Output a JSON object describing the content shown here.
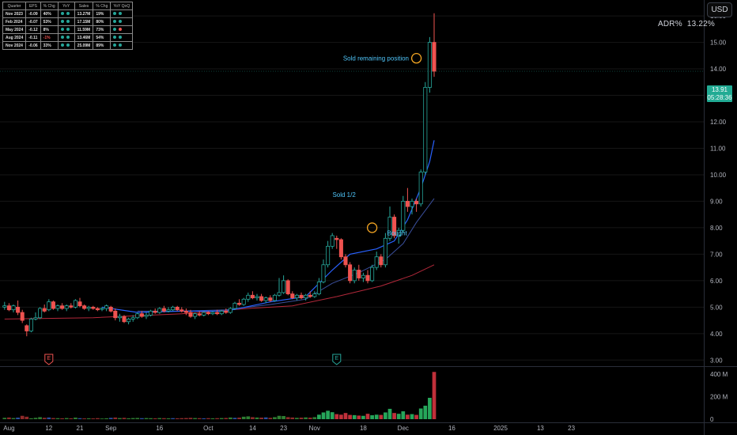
{
  "header": {
    "currency_button": "USD",
    "adr_label": "ADR%",
    "adr_value": "13.22%"
  },
  "price_badge": {
    "price": "13.91",
    "countdown": "05:28:36",
    "value": 13.91,
    "color": "#22ab94"
  },
  "earnings_table": {
    "headers": [
      "Quarter",
      "EPS",
      "% Chg",
      "YoY",
      "Sales",
      "% Chg",
      "YoY QoQ"
    ],
    "rows": [
      {
        "quarter": "Nov 2023",
        "eps": "-0.09",
        "eps_chg": "40%",
        "d1": "green",
        "d2": "green",
        "sales": "13.27M",
        "sales_chg": "19%",
        "d3": "green",
        "d4": "green"
      },
      {
        "quarter": "Feb 2024",
        "eps": "-0.07",
        "eps_chg": "53%",
        "d1": "green",
        "d2": "green",
        "sales": "17.15M",
        "sales_chg": "80%",
        "d3": "green",
        "d4": "green"
      },
      {
        "quarter": "May 2024",
        "eps": "-0.12",
        "eps_chg": "8%",
        "d1": "green",
        "d2": "green",
        "sales": "11.59M",
        "sales_chg": "73%",
        "d3": "green",
        "d4": "red"
      },
      {
        "quarter": "Aug 2024",
        "eps": "-0.11",
        "eps_chg": "-1%",
        "d1": "green",
        "d2": "green",
        "sales": "13.46M",
        "sales_chg": "54%",
        "d3": "green",
        "d4": "green"
      },
      {
        "quarter": "Nov 2024",
        "eps": "-0.06",
        "eps_chg": "33%",
        "d1": "green",
        "d2": "green",
        "sales": "25.09M",
        "sales_chg": "89%",
        "d3": "green",
        "d4": "green"
      }
    ]
  },
  "annotations": [
    {
      "text": "Sold remaining position",
      "x": 92,
      "y": 14.4,
      "align": "end",
      "circle": true,
      "circle_y": 14.4
    },
    {
      "text": "Sold 1/2",
      "x": 80,
      "y": 9.25,
      "align": "end",
      "circle": false
    },
    {
      "text": "Bought",
      "x": 86,
      "y": 7.8,
      "align": "start",
      "circle": true,
      "circle_y": 8.0
    }
  ],
  "earnings_markers": [
    {
      "x": 10,
      "label": "E",
      "color": "#ef5350"
    },
    {
      "x": 75,
      "label": "E",
      "color": "#26a69a"
    }
  ],
  "colors": {
    "up": "#26a69a",
    "down": "#ef5350",
    "ema_fast": "#2962ff",
    "ema_mid": "#3a4f9c",
    "ema_slow": "#b2283a",
    "grid": "#161616",
    "axis_text": "#b2b5be"
  },
  "chart_data": {
    "type": "candlestick",
    "price_axis": {
      "ticks": [
        3.0,
        4.0,
        5.0,
        6.0,
        7.0,
        8.0,
        9.0,
        10.0,
        11.0,
        12.0,
        13.0,
        14.0,
        15.0,
        16.0
      ],
      "range": [
        2.8,
        16.6
      ]
    },
    "volume_axis": {
      "ticks": [
        "400 M",
        "200 M",
        "0"
      ],
      "tick_values": [
        400,
        200,
        0
      ],
      "range": [
        0,
        450
      ],
      "unit": "M"
    },
    "x_axis": {
      "labels": [
        {
          "text": "Aug",
          "bar": 1
        },
        {
          "text": "12",
          "bar": 10
        },
        {
          "text": "21",
          "bar": 17
        },
        {
          "text": "Sep",
          "bar": 24
        },
        {
          "text": "16",
          "bar": 35
        },
        {
          "text": "Oct",
          "bar": 46
        },
        {
          "text": "14",
          "bar": 56
        },
        {
          "text": "23",
          "bar": 63
        },
        {
          "text": "Nov",
          "bar": 70
        },
        {
          "text": "18",
          "bar": 81
        },
        {
          "text": "Dec",
          "bar": 90
        },
        {
          "text": "16",
          "bar": 101
        },
        {
          "text": "2025",
          "bar": 112
        },
        {
          "text": "13",
          "bar": 121
        },
        {
          "text": "23",
          "bar": 128
        }
      ]
    },
    "candles": [
      [
        5.0,
        5.2,
        4.9,
        5.05
      ],
      [
        5.05,
        5.15,
        4.85,
        4.9
      ],
      [
        4.9,
        5.1,
        4.8,
        5.05
      ],
      [
        5.0,
        5.25,
        4.7,
        4.8
      ],
      [
        4.8,
        4.9,
        4.4,
        4.5
      ],
      [
        4.3,
        4.35,
        3.9,
        4.1
      ],
      [
        4.1,
        4.6,
        4.05,
        4.55
      ],
      [
        4.55,
        4.8,
        4.5,
        4.6
      ],
      [
        4.6,
        5.0,
        4.55,
        4.95
      ],
      [
        4.95,
        5.1,
        4.8,
        4.85
      ],
      [
        4.9,
        5.3,
        4.85,
        5.2
      ],
      [
        5.2,
        5.25,
        4.9,
        4.95
      ],
      [
        4.95,
        5.1,
        4.85,
        5.05
      ],
      [
        5.05,
        5.15,
        4.9,
        4.95
      ],
      [
        4.95,
        5.1,
        4.85,
        5.05
      ],
      [
        5.05,
        5.15,
        4.95,
        5.0
      ],
      [
        5.0,
        5.3,
        4.95,
        5.25
      ],
      [
        5.2,
        5.35,
        5.0,
        5.05
      ],
      [
        5.05,
        5.1,
        4.9,
        4.95
      ],
      [
        4.95,
        5.05,
        4.85,
        5.0
      ],
      [
        5.0,
        5.05,
        4.9,
        4.95
      ],
      [
        4.95,
        5.0,
        4.85,
        4.9
      ],
      [
        4.95,
        5.0,
        4.85,
        4.95
      ],
      [
        4.95,
        5.1,
        4.85,
        5.05
      ],
      [
        5.0,
        5.05,
        4.8,
        4.85
      ],
      [
        4.85,
        4.95,
        4.5,
        4.6
      ],
      [
        4.6,
        4.75,
        4.45,
        4.65
      ],
      [
        4.65,
        4.7,
        4.4,
        4.45
      ],
      [
        4.45,
        4.6,
        4.35,
        4.55
      ],
      [
        4.55,
        4.7,
        4.45,
        4.6
      ],
      [
        4.6,
        4.8,
        4.55,
        4.75
      ],
      [
        4.75,
        4.85,
        4.6,
        4.65
      ],
      [
        4.65,
        4.8,
        4.55,
        4.7
      ],
      [
        4.7,
        4.9,
        4.65,
        4.85
      ],
      [
        4.85,
        4.95,
        4.75,
        4.8
      ],
      [
        4.8,
        5.0,
        4.75,
        4.95
      ],
      [
        4.95,
        5.05,
        4.8,
        4.85
      ],
      [
        4.85,
        5.0,
        4.8,
        4.9
      ],
      [
        4.9,
        5.05,
        4.85,
        5.0
      ],
      [
        5.0,
        5.05,
        4.85,
        4.9
      ],
      [
        4.9,
        5.0,
        4.8,
        4.85
      ],
      [
        4.85,
        4.95,
        4.7,
        4.8
      ],
      [
        4.8,
        4.9,
        4.6,
        4.65
      ],
      [
        4.65,
        4.8,
        4.55,
        4.75
      ],
      [
        4.75,
        4.85,
        4.65,
        4.7
      ],
      [
        4.7,
        4.85,
        4.65,
        4.8
      ],
      [
        4.8,
        4.85,
        4.7,
        4.75
      ],
      [
        4.75,
        4.85,
        4.7,
        4.8
      ],
      [
        4.8,
        4.9,
        4.7,
        4.75
      ],
      [
        4.75,
        4.9,
        4.7,
        4.85
      ],
      [
        4.85,
        4.95,
        4.75,
        4.8
      ],
      [
        4.8,
        5.0,
        4.75,
        4.95
      ],
      [
        4.95,
        5.2,
        4.9,
        5.15
      ],
      [
        5.15,
        5.3,
        5.05,
        5.1
      ],
      [
        5.1,
        5.35,
        5.05,
        5.3
      ],
      [
        5.3,
        5.55,
        5.2,
        5.45
      ],
      [
        5.45,
        5.6,
        5.3,
        5.35
      ],
      [
        5.35,
        5.5,
        5.25,
        5.4
      ],
      [
        5.4,
        5.5,
        5.2,
        5.25
      ],
      [
        5.25,
        5.4,
        5.15,
        5.35
      ],
      [
        5.35,
        5.45,
        5.2,
        5.25
      ],
      [
        5.25,
        5.5,
        5.2,
        5.45
      ],
      [
        5.45,
        6.1,
        5.4,
        5.55
      ],
      [
        5.55,
        6.2,
        5.5,
        6.0
      ],
      [
        6.0,
        6.05,
        5.45,
        5.5
      ],
      [
        5.5,
        5.6,
        5.3,
        5.35
      ],
      [
        5.35,
        5.5,
        5.25,
        5.45
      ],
      [
        5.45,
        5.55,
        5.3,
        5.35
      ],
      [
        5.35,
        5.5,
        5.25,
        5.45
      ],
      [
        5.45,
        5.6,
        5.35,
        5.4
      ],
      [
        5.4,
        5.6,
        5.35,
        5.5
      ],
      [
        5.5,
        6.1,
        5.45,
        5.95
      ],
      [
        5.95,
        6.8,
        5.9,
        6.6
      ],
      [
        6.6,
        7.5,
        6.5,
        7.3
      ],
      [
        7.3,
        7.8,
        7.2,
        7.7
      ],
      [
        7.6,
        7.7,
        7.2,
        7.55
      ],
      [
        7.55,
        7.6,
        6.8,
        6.9
      ],
      [
        6.9,
        7.0,
        6.5,
        6.6
      ],
      [
        6.6,
        6.7,
        5.9,
        6.0
      ],
      [
        6.0,
        6.5,
        5.9,
        6.4
      ],
      [
        6.4,
        6.6,
        6.0,
        6.1
      ],
      [
        6.1,
        6.3,
        5.95,
        6.2
      ],
      [
        6.2,
        6.4,
        5.9,
        6.0
      ],
      [
        6.0,
        6.6,
        5.95,
        6.5
      ],
      [
        6.5,
        7.1,
        6.4,
        6.9
      ],
      [
        6.9,
        7.0,
        6.5,
        6.6
      ],
      [
        6.6,
        7.8,
        6.5,
        7.6
      ],
      [
        7.6,
        8.8,
        7.5,
        8.4
      ],
      [
        8.4,
        8.5,
        7.6,
        7.7
      ],
      [
        7.7,
        8.0,
        7.4,
        7.9
      ],
      [
        7.9,
        9.2,
        7.8,
        9.0
      ],
      [
        9.0,
        9.5,
        8.6,
        8.8
      ],
      [
        8.8,
        9.1,
        8.5,
        9.0
      ],
      [
        9.0,
        9.1,
        8.6,
        8.9
      ],
      [
        8.9,
        10.2,
        8.8,
        10.1
      ],
      [
        10.1,
        13.5,
        10.0,
        13.3
      ],
      [
        13.3,
        15.2,
        13.1,
        15.0
      ],
      [
        15.0,
        16.1,
        13.7,
        13.91
      ]
    ],
    "ema_fast": [
      [
        22,
        5.0
      ],
      [
        30,
        4.8
      ],
      [
        40,
        4.85
      ],
      [
        50,
        4.85
      ],
      [
        60,
        5.2
      ],
      [
        68,
        5.4
      ],
      [
        74,
        6.4
      ],
      [
        78,
        7.0
      ],
      [
        84,
        7.2
      ],
      [
        88,
        7.5
      ],
      [
        91,
        8.3
      ],
      [
        94,
        9.5
      ],
      [
        96,
        10.5
      ],
      [
        97,
        11.3
      ]
    ],
    "ema_mid": [
      [
        30,
        4.85
      ],
      [
        40,
        4.85
      ],
      [
        50,
        4.9
      ],
      [
        60,
        5.1
      ],
      [
        68,
        5.3
      ],
      [
        74,
        5.9
      ],
      [
        80,
        6.3
      ],
      [
        86,
        6.8
      ],
      [
        90,
        7.4
      ],
      [
        93,
        8.2
      ],
      [
        97,
        9.1
      ]
    ],
    "ema_slow": [
      [
        0,
        4.55
      ],
      [
        20,
        4.6
      ],
      [
        40,
        4.75
      ],
      [
        55,
        4.95
      ],
      [
        65,
        5.05
      ],
      [
        75,
        5.4
      ],
      [
        85,
        5.8
      ],
      [
        92,
        6.2
      ],
      [
        97,
        6.6
      ]
    ],
    "volume": [
      12,
      15,
      10,
      14,
      30,
      22,
      8,
      12,
      18,
      12,
      15,
      10,
      9,
      8,
      10,
      8,
      14,
      9,
      7,
      8,
      7,
      9,
      6,
      8,
      12,
      15,
      10,
      12,
      8,
      10,
      11,
      9,
      10,
      9,
      8,
      10,
      9,
      8,
      9,
      8,
      9,
      10,
      12,
      10,
      9,
      8,
      9,
      8,
      9,
      10,
      11,
      15,
      12,
      14,
      22,
      25,
      18,
      15,
      14,
      16,
      12,
      18,
      30,
      28,
      18,
      15,
      12,
      14,
      16,
      14,
      18,
      40,
      60,
      75,
      62,
      45,
      40,
      55,
      38,
      36,
      32,
      30,
      48,
      35,
      40,
      38,
      60,
      92,
      55,
      48,
      70,
      40,
      45,
      38,
      95,
      120,
      190,
      420
    ],
    "volume_colors": "candle direction (green up, red down), early-period bars mixed"
  }
}
